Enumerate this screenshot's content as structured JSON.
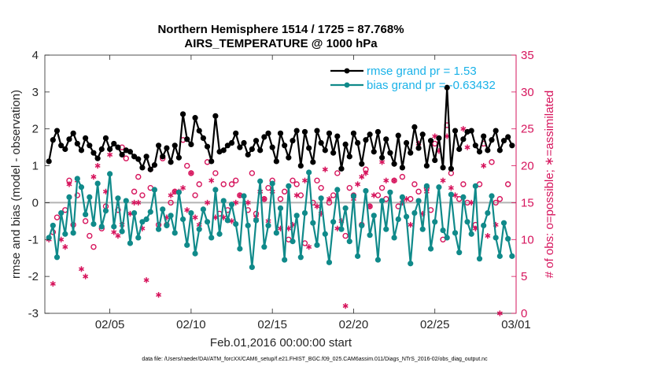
{
  "chart_data": {
    "type": "line",
    "title_line1": "Northern Hemisphere 1514 / 1725 = 87.768%",
    "title_line2": "AIRS_TEMPERATURE @ 1000 hPa",
    "xlabel": "Feb.01,2016 00:00:00 start",
    "ylabel": "rmse and bias (model - observation)",
    "ylabel_right": "# of obs: o=possible; ∗=assimilated",
    "footnote": "data file: /Users/raeder/DAI/ATM_forcXX/CAM6_setup/f.e21.FHIST_BGC.f09_025.CAM6assim.011/Diags_NTrS_2016-02/obs_diag_output.nc",
    "xlim": [
      1.0,
      30.0
    ],
    "ylim": [
      -3,
      4
    ],
    "ylim_right": [
      0,
      35
    ],
    "x_ticks": [
      5,
      10,
      15,
      20,
      25,
      30
    ],
    "x_tick_labels": [
      "02/05",
      "02/10",
      "02/15",
      "02/20",
      "02/25",
      "03/01"
    ],
    "y_ticks": [
      -3,
      -2,
      -1,
      0,
      1,
      2,
      3,
      4
    ],
    "y_ticks_right": [
      0,
      5,
      10,
      15,
      20,
      25,
      30,
      35
    ],
    "legend": {
      "placement": "top-right",
      "entries": [
        "rmse grand pr = 1.53",
        "bias grand pr = -0.63432"
      ],
      "text_color": "#1ab2e8"
    },
    "colors": {
      "rmse": "#000000",
      "bias": "#108a8a",
      "obs": "#d6145c",
      "zero_line": "#b3b3b3"
    },
    "x": [
      1.25,
      1.5,
      1.75,
      2.0,
      2.25,
      2.5,
      2.75,
      3.0,
      3.25,
      3.5,
      3.75,
      4.0,
      4.25,
      4.5,
      4.75,
      5.0,
      5.25,
      5.5,
      5.75,
      6.0,
      6.25,
      6.5,
      6.75,
      7.0,
      7.25,
      7.5,
      7.75,
      8.0,
      8.25,
      8.5,
      8.75,
      9.0,
      9.25,
      9.5,
      9.75,
      10.0,
      10.25,
      10.5,
      10.75,
      11.0,
      11.25,
      11.5,
      11.75,
      12.0,
      12.25,
      12.5,
      12.75,
      13.0,
      13.25,
      13.5,
      13.75,
      14.0,
      14.25,
      14.5,
      14.75,
      15.0,
      15.25,
      15.5,
      15.75,
      16.0,
      16.25,
      16.5,
      16.75,
      17.0,
      17.25,
      17.5,
      17.75,
      18.0,
      18.25,
      18.5,
      18.75,
      19.0,
      19.25,
      19.5,
      19.75,
      20.0,
      20.25,
      20.5,
      20.75,
      21.0,
      21.25,
      21.5,
      21.75,
      22.0,
      22.25,
      22.5,
      22.75,
      23.0,
      23.25,
      23.5,
      23.75,
      24.0,
      24.25,
      24.5,
      24.75,
      25.0,
      25.25,
      25.5,
      25.75,
      26.0,
      26.25,
      26.5,
      26.75,
      27.0,
      27.25,
      27.5,
      27.75,
      28.0,
      28.25,
      28.5,
      28.75,
      29.0,
      29.25,
      29.5,
      29.75
    ],
    "series": [
      {
        "name": "rmse",
        "marker": "filled-circle",
        "values": [
          1.12,
          1.7,
          1.95,
          1.55,
          1.45,
          1.72,
          1.88,
          1.6,
          1.42,
          1.75,
          1.55,
          1.35,
          1.2,
          1.45,
          1.75,
          1.45,
          1.6,
          1.5,
          1.3,
          1.42,
          1.38,
          1.25,
          1.18,
          0.95,
          1.25,
          0.9,
          1.02,
          1.55,
          1.25,
          1.48,
          1.1,
          1.55,
          1.22,
          2.4,
          1.72,
          1.58,
          2.3,
          1.95,
          1.75,
          1.52,
          1.12,
          2.35,
          1.38,
          1.42,
          1.55,
          1.62,
          1.88,
          1.5,
          1.62,
          1.3,
          1.45,
          1.68,
          1.42,
          1.78,
          1.88,
          1.5,
          1.12,
          1.88,
          1.55,
          1.22,
          1.68,
          1.95,
          1.0,
          1.92,
          1.48,
          1.1,
          1.95,
          1.62,
          1.42,
          1.88,
          1.35,
          1.8,
          0.92,
          1.58,
          1.25,
          1.88,
          1.62,
          1.05,
          1.7,
          1.85,
          1.38,
          1.92,
          1.22,
          1.72,
          1.35,
          1.05,
          1.82,
          0.95,
          1.62,
          1.35,
          2.05,
          1.48,
          1.85,
          1.0,
          1.68,
          1.15,
          1.75,
          0.95,
          3.12,
          0.92,
          1.95,
          1.45,
          1.72,
          1.92,
          1.95,
          1.55,
          1.38,
          1.8,
          1.42,
          1.7,
          1.95,
          1.42,
          1.68,
          1.78,
          1.55
        ]
      },
      {
        "name": "bias",
        "marker": "filled-circle",
        "values": [
          -0.95,
          -0.62,
          -1.48,
          -0.28,
          -0.85,
          0.15,
          -0.82,
          0.65,
          0.42,
          -0.32,
          0.15,
          -0.58,
          0.52,
          -0.65,
          -0.22,
          0.78,
          -0.65,
          0.12,
          -0.78,
          0.05,
          -1.1,
          -0.28,
          -0.95,
          -0.52,
          -0.45,
          -0.25,
          0.35,
          -0.72,
          -0.18,
          -0.62,
          -0.35,
          -0.82,
          0.28,
          -0.45,
          -1.15,
          -0.28,
          -1.38,
          -0.72,
          -0.18,
          -0.52,
          -0.95,
          0.35,
          -0.85,
          0.05,
          -0.48,
          -0.05,
          -0.58,
          -1.25,
          0.18,
          -0.62,
          -1.75,
          -0.48,
          0.58,
          -1.2,
          -0.62,
          0.52,
          -0.82,
          -0.15,
          -1.55,
          0.45,
          -1.05,
          -0.35,
          -1.48,
          -0.28,
          0.82,
          -0.55,
          -1.15,
          0.12,
          -0.85,
          -1.62,
          -0.52,
          0.35,
          -0.72,
          -0.15,
          -1.05,
          0.18,
          -1.45,
          -0.62,
          0.32,
          -0.88,
          -0.35,
          -1.55,
          0.05,
          -0.72,
          0.28,
          -0.95,
          -0.45,
          0.15,
          -0.38,
          -1.65,
          -0.28,
          0.05,
          -0.72,
          0.45,
          -1.25,
          -0.52,
          0.42,
          -0.75,
          -0.95,
          0.22,
          -0.82,
          -1.35,
          0.15,
          -0.52,
          -0.85,
          0.45,
          -1.52,
          -0.62,
          -0.28,
          0.18,
          -0.95,
          -1.45,
          -0.55,
          -0.98,
          -1.45
        ]
      }
    ],
    "obs_possible": {
      "marker": "open-circle",
      "x": [
        1.5,
        1.75,
        2.25,
        2.5,
        2.75,
        3.0,
        3.5,
        3.75,
        4.0,
        4.5,
        4.75,
        5.5,
        5.75,
        6.0,
        6.5,
        6.75,
        7.0,
        7.5,
        8.0,
        8.25,
        8.5,
        8.75,
        9.0,
        9.5,
        9.75,
        10.0,
        10.25,
        10.5,
        11.0,
        11.5,
        11.75,
        12.0,
        12.25,
        12.5,
        12.75,
        13.0,
        13.5,
        13.75,
        14.0,
        14.5,
        14.75,
        15.0,
        15.5,
        15.75,
        16.0,
        16.25,
        16.5,
        16.75,
        17.0,
        17.5,
        17.75,
        18.0,
        18.5,
        18.75,
        19.0,
        19.5,
        19.75,
        20.0,
        20.5,
        20.75,
        21.0,
        21.5,
        21.75,
        22.0,
        22.5,
        22.75,
        23.0,
        23.5,
        23.75,
        24.0,
        24.5,
        24.75,
        25.0,
        25.5,
        25.75,
        26.0,
        26.5,
        26.75,
        27.0,
        27.5,
        27.75,
        28.0,
        28.5,
        28.75,
        29.0,
        29.5
      ],
      "values": [
        11,
        13,
        14,
        18,
        12,
        16,
        12.5,
        10.5,
        9,
        11.5,
        14.5,
        14,
        22.5,
        21,
        16.5,
        18.5,
        16,
        17,
        12,
        21,
        12,
        15,
        16.5,
        23.5,
        20,
        19,
        16,
        17.5,
        20.5,
        19,
        13.5,
        17.5,
        14,
        17.5,
        18,
        16,
        14,
        19,
        13.5,
        15.5,
        17,
        18,
        15.5,
        16.5,
        10,
        18,
        17.5,
        16,
        9.5,
        15,
        18,
        17,
        15,
        16,
        19,
        10.5,
        17,
        16,
        12,
        19.5,
        14.5,
        16,
        17,
        15.5,
        18,
        14.5,
        18.5,
        15.5,
        17.5,
        16.5,
        17,
        14,
        23,
        10,
        25.5,
        19,
        15.5,
        17.5,
        15,
        12,
        17.5,
        23,
        20.5,
        15,
        15.5,
        17.5
      ]
    },
    "obs_assimilated": {
      "marker": "asterisk",
      "x": [
        1.25,
        1.5,
        2.0,
        2.25,
        2.5,
        3.0,
        3.25,
        3.5,
        4.0,
        4.25,
        4.75,
        5.0,
        5.25,
        5.5,
        5.75,
        6.25,
        6.5,
        6.75,
        7.0,
        7.25,
        7.5,
        8.0,
        8.5,
        8.75,
        9.0,
        9.25,
        9.5,
        9.75,
        10.0,
        10.25,
        10.5,
        11.0,
        11.25,
        11.5,
        12.0,
        12.5,
        12.75,
        13.0,
        13.5,
        14.0,
        14.25,
        14.5,
        14.75,
        15.0,
        15.5,
        16.0,
        16.25,
        16.5,
        17.0,
        17.25,
        17.75,
        18.0,
        18.25,
        18.5,
        19.0,
        19.25,
        19.5,
        20.0,
        20.25,
        20.5,
        20.75,
        21.0,
        21.25,
        21.75,
        22.0,
        22.5,
        23.0,
        23.25,
        23.5,
        24.0,
        24.25,
        24.5,
        25.0,
        25.25,
        25.5,
        25.75,
        26.0,
        26.25,
        26.75,
        27.0,
        27.25,
        27.5,
        28.0,
        28.25,
        28.75,
        29.0
      ],
      "values": [
        10,
        4,
        10,
        9,
        17.5,
        18,
        6,
        5,
        18.5,
        20,
        16.5,
        21.5,
        11,
        10.5,
        12,
        13.5,
        15,
        15,
        11.5,
        4.5,
        19.5,
        2.5,
        13,
        16,
        16.5,
        16.5,
        17,
        14,
        19,
        13,
        12,
        15,
        18,
        13,
        13,
        12.5,
        15,
        16,
        15,
        13,
        16.5,
        15.5,
        12.5,
        16.5,
        11.5,
        11.5,
        12,
        16,
        18,
        9,
        14.5,
        13.5,
        19.5,
        15.5,
        11.5,
        12.5,
        1,
        15.5,
        17.5,
        18.5,
        19,
        14.5,
        16,
        20.5,
        18,
        18,
        15,
        15.5,
        12,
        23,
        13.5,
        16.5,
        24,
        22,
        18,
        24,
        17,
        16,
        25,
        22.5,
        15,
        11.5,
        20,
        10.5,
        12,
        0
      ]
    }
  }
}
